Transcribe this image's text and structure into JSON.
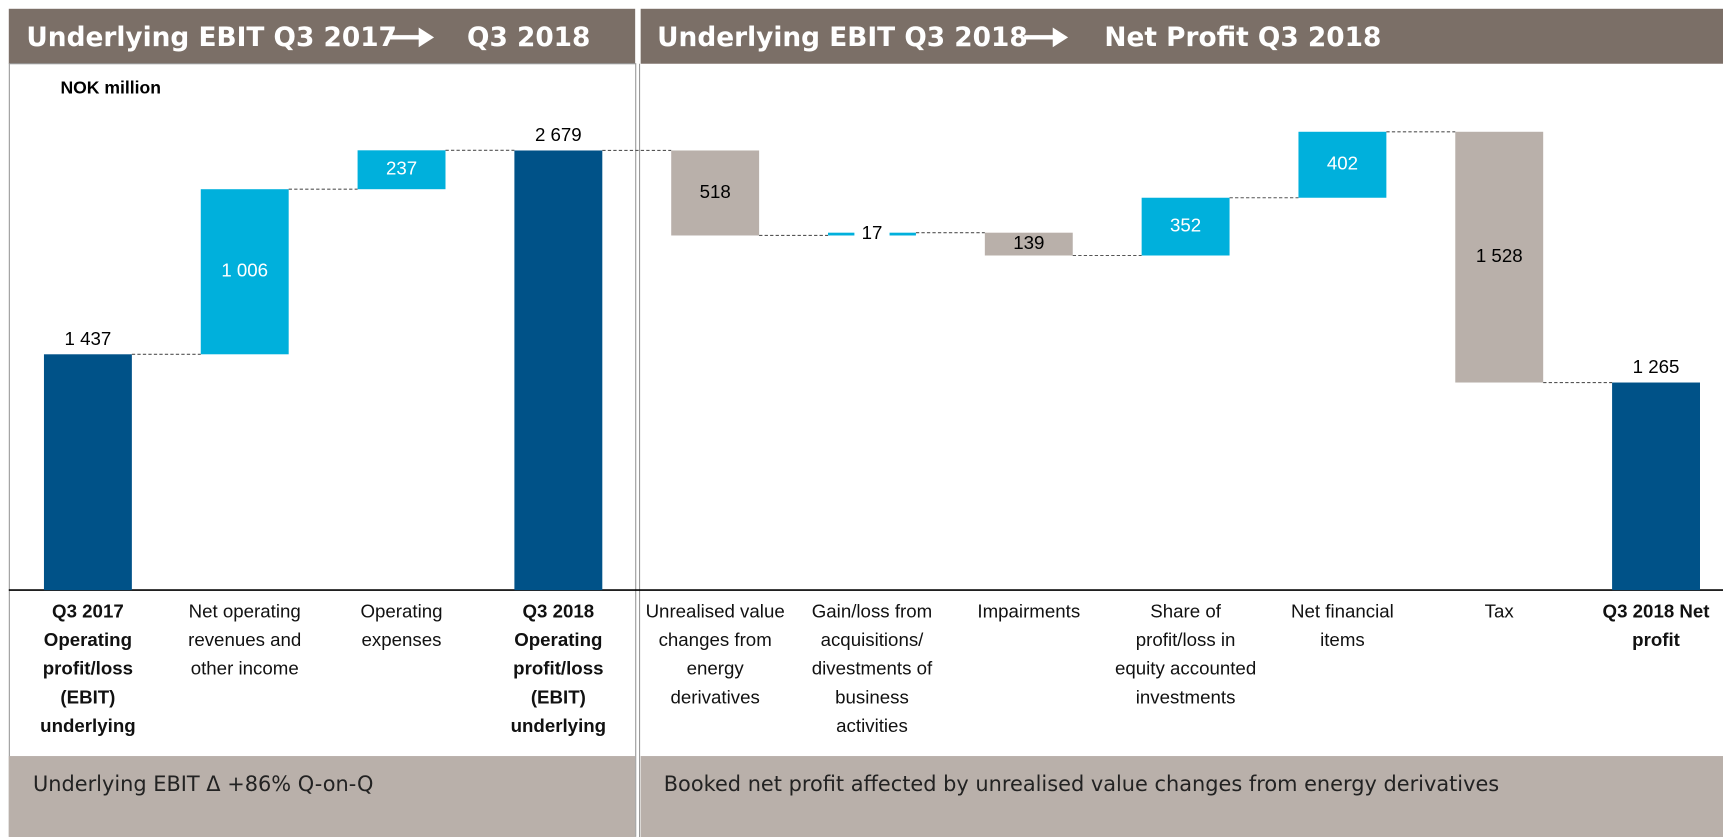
{
  "chart_data": {
    "type": "waterfall",
    "unit": "NOK million",
    "categories": [
      "Q3 2017 Operating profit/loss (EBIT) underlying",
      "Net operating revenues and other income",
      "Operating expenses",
      "Q3 2018 Operating profit/loss (EBIT) underlying",
      "Unrealised value changes from energy derivatives",
      "Gain/loss from acquisitions/ divestments of business activities",
      "Impairments",
      "Share of profit/loss in equity accounted investments",
      "Net financial items",
      "Tax",
      "Q3 2018 Net profit"
    ],
    "values": [
      1437,
      1006,
      237,
      2679,
      -518,
      17,
      -139,
      352,
      402,
      -1528,
      1265
    ],
    "value_labels": [
      "1 437",
      "1 006",
      "237",
      "2 679",
      "518",
      "17",
      "139",
      "352",
      "402",
      "1 528",
      "1 265"
    ],
    "is_total": [
      true,
      false,
      false,
      true,
      false,
      false,
      false,
      false,
      false,
      false,
      true
    ],
    "colors": {
      "total": "#005288",
      "increase": "#00b0dc",
      "decrease": "#b9b0aa"
    },
    "ylim": [
      0,
      3000
    ]
  },
  "panels": [
    {
      "title_from": "Underlying EBIT Q3 2017",
      "title_to": "Q3 2018",
      "footer": "Underlying EBIT  Δ  +86% Q-on-Q"
    },
    {
      "title_from": "Underlying EBIT Q3 2018",
      "title_to": "Net Profit Q3 2018",
      "footer": "Booked net profit affected by unrealised value changes from energy derivatives"
    }
  ]
}
